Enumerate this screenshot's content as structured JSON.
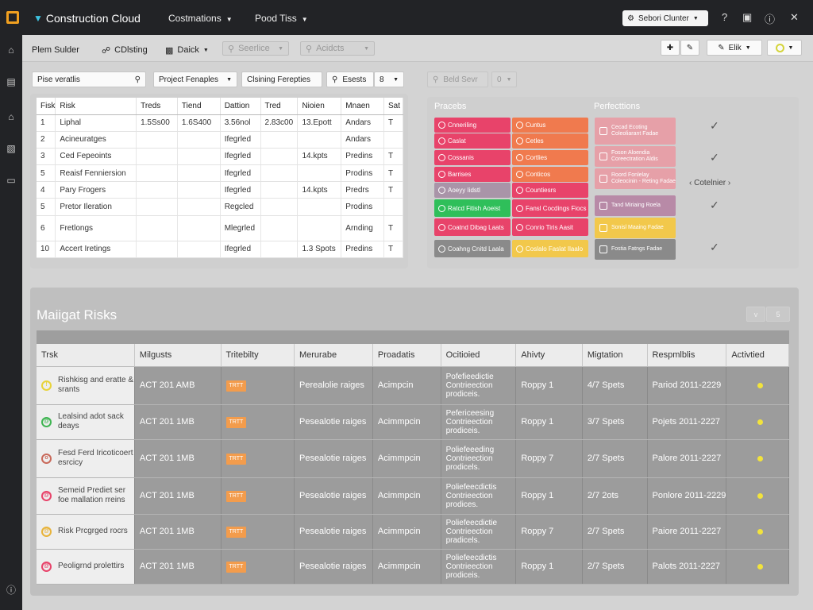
{
  "app": {
    "brand": "Construction Cloud"
  },
  "topnav": [
    {
      "label": "Costmations"
    },
    {
      "label": "Pood Tiss"
    }
  ],
  "search_button": {
    "label": "Sebori Clunter"
  },
  "toolbar": {
    "item1": "Plem Sulder",
    "item2": "CDlsting",
    "item3": "Daick",
    "item4": "Seerlice",
    "item5": "Acidcts",
    "right_btn3": "Elik"
  },
  "filters": {
    "search_placeholder": "Pise veratlis",
    "dropdown1": "Project Fenaples",
    "btn1": "Clsining Ferepties",
    "btn2": "Esests",
    "dropdown2": "8",
    "right_search": "Beld Sevr",
    "right_toggle": "0"
  },
  "risk_table": {
    "headers": [
      "Fisk",
      "Risk",
      "Treds",
      "Tiend",
      "Dattion",
      "Tred",
      "Nioien",
      "Mnaen",
      "Sat"
    ],
    "rows": [
      [
        "1",
        "Liphal",
        "1.5Ss00",
        "1.6S400",
        "3.56nol",
        "2.83c00",
        "13.Epott",
        "Andars",
        "T"
      ],
      [
        "2",
        "Acineuratges",
        "",
        "",
        "Ifegrled",
        "",
        "",
        "Andars",
        ""
      ],
      [
        "3",
        "Ced Fepeoints",
        "",
        "",
        "Ifegrled",
        "",
        "14.kpts",
        "Predins",
        "T"
      ],
      [
        "5",
        "Reaisf Fenniersion",
        "",
        "",
        "Ifegrled",
        "",
        "",
        "Prodins",
        "T"
      ],
      [
        "4",
        "Pary Frogers",
        "",
        "",
        "Ifegrled",
        "",
        "14.kpts",
        "Predrs",
        "T"
      ],
      [
        "5",
        "Pretor Ileration",
        "",
        "",
        "Regcled",
        "",
        "",
        "Prodins",
        ""
      ],
      [
        "6",
        "Fretlongs",
        "",
        "",
        "Mlegrled",
        "",
        "",
        "Arnding",
        "T"
      ],
      [
        "10",
        "Accert Iretings",
        "",
        "",
        "Ifegrled",
        "",
        "1.3 Spots",
        "Predins",
        "T"
      ]
    ]
  },
  "practices": {
    "title": "Pracebs",
    "col1": [
      {
        "label": "Cnneriling",
        "color": "#e8436a"
      },
      {
        "label": "Caslat",
        "color": "#e8436a"
      },
      {
        "label": "Cossanis",
        "color": "#e8436a"
      },
      {
        "label": "Barrises",
        "color": "#e8436a"
      },
      {
        "label": "Aoeyy Iidstl",
        "color": "#a994a8"
      },
      {
        "label": "Ratcd Fitish Aoeist",
        "color": "#2fbf5a"
      },
      {
        "label": "Coatnd Dibag Laats",
        "color": "#e8436a"
      },
      {
        "label": "Coahng Cnitd Laala",
        "color": "#8a8a8a"
      }
    ],
    "col2": [
      {
        "label": "Cuntus",
        "color": "#f07a4e"
      },
      {
        "label": "Cetles",
        "color": "#f07a4e"
      },
      {
        "label": "Cortlies",
        "color": "#f07a4e"
      },
      {
        "label": "Conticos",
        "color": "#f07a4e"
      },
      {
        "label": "Countiesrs",
        "color": "#e8436a"
      },
      {
        "label": "Fansl Cocdings Fiocs",
        "color": "#e8436a"
      },
      {
        "label": "Conrio Tiris Aasit",
        "color": "#e8436a"
      },
      {
        "label": "Coslalo Faslat Ilaalo",
        "color": "#f2c84b"
      }
    ]
  },
  "protections": {
    "title": "Perfecttions",
    "items": [
      {
        "label": "Cecad Ecoting Coleoliarant Fadae",
        "color": "#e6a0a8"
      },
      {
        "label": "Foson Aloendia Coreectration Aldis",
        "color": "#e6a0a8"
      },
      {
        "label": "Roord Fonlelay Coleocinin - Reting Fadae",
        "color": "#e6a0a8"
      },
      {
        "label": "Tand Miriaing Roela",
        "color": "#b88aa7"
      },
      {
        "label": "Sonisl Maaing Fadae",
        "color": "#f2c84b"
      },
      {
        "label": "Fostia Fatngs Fadae",
        "color": "#8a8a8a"
      }
    ],
    "calendar_label": "Cotelnier"
  },
  "mitigation": {
    "title": "Maiigat Risks",
    "ctrl1": "v",
    "ctrl2": "5",
    "headers": [
      "Trsk",
      "Milgusts",
      "Tritebilty",
      "Merurabe",
      "Proadatis",
      "Ocitioied",
      "Ahivty",
      "Migtation",
      "Respmlblis",
      "Activtied"
    ],
    "rows": [
      {
        "risk": "Rishkisg and eratte & srants",
        "icon_color": "#e8d33a",
        "icon_glyph": "!",
        "mitigation": "ACT 201 AMB",
        "tag": "TRTT",
        "measure": "Perealolie raiges",
        "product": "Acimpcin",
        "objective": "Pofefieedictie Contrieection prodiceis.",
        "activity": "Roppy 1",
        "migration": "4/7 Spets",
        "responsibility": "Pariod 2011-2229"
      },
      {
        "risk": "Lealsind adot sack deays",
        "icon_color": "#3fb552",
        "icon_glyph": "@",
        "mitigation": "ACT 201 1MB",
        "tag": "TRTT",
        "measure": "Pesealotie raiges",
        "product": "Acimmpcin",
        "objective": "Pefericeesing Contrieection prodiceis.",
        "activity": "Roppy 1",
        "migration": "3/7 Spets",
        "responsibility": "Pojets 2011-2227"
      },
      {
        "risk": "Fesd Ferd Iricoticoert esrcicy",
        "icon_color": "#c9695a",
        "icon_glyph": "o",
        "mitigation": "ACT 201 1MB",
        "tag": "TRTT",
        "measure": "Pesealotie raiges",
        "product": "Acimmpcin",
        "objective": "Poliefeeeding Contrieection prodicels.",
        "activity": "Roppy 7",
        "migration": "2/7 Spets",
        "responsibility": "Palore 2011-2227"
      },
      {
        "risk": "Semeid Prediet ser foe mallation rreins",
        "icon_color": "#e8436a",
        "icon_glyph": "@",
        "mitigation": "ACT 201 1MB",
        "tag": "TRTT",
        "measure": "Pesealotie raiges",
        "product": "Acimmpcin",
        "objective": "Poliefeecdictis Contrieection prodices.",
        "activity": "Roppy 1",
        "migration": "2/7 2ots",
        "responsibility": "Ponlore 2011-2229"
      },
      {
        "risk": "Risk Prcgrged rocrs",
        "icon_color": "#e8b33a",
        "icon_glyph": "@",
        "mitigation": "ACT 201 1MB",
        "tag": "TRTT",
        "measure": "Pesealotie raiges",
        "product": "Acimmpcin",
        "objective": "Poliefeecdictie Contrieection pradicels.",
        "activity": "Roppy 7",
        "migration": "2/7 Spets",
        "responsibility": "Paiore 2011-2227"
      },
      {
        "risk": "Peoligrnd prolettirs",
        "icon_color": "#e8436a",
        "icon_glyph": "@",
        "mitigation": "ACT 201 1MB",
        "tag": "TRTT",
        "measure": "Pesealotie raiges",
        "product": "Acimmpcin",
        "objective": "Poliefeecdictis Contrieection prodiceis.",
        "activity": "Roppy 1",
        "migration": "2/7 Spets",
        "responsibility": "Palots 2011-2227"
      }
    ]
  }
}
